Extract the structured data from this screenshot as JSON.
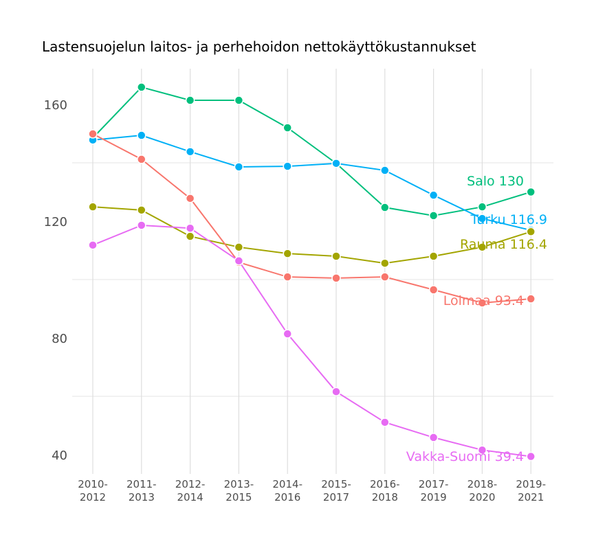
{
  "chart_data": {
    "type": "line",
    "title": "Lastensuojelun laitos- ja perhehoidon nettokäyttökustannukset",
    "xlabel": "",
    "ylabel": "",
    "categories": [
      "2010-\n2012",
      "2011-\n2013",
      "2012-\n2014",
      "2013-\n2015",
      "2014-\n2016",
      "2015-\n2017",
      "2016-\n2018",
      "2017-\n2019",
      "2018-\n2020",
      "2019-\n2021"
    ],
    "yticks": [
      40,
      80,
      120,
      160
    ],
    "ylim": [
      33,
      178
    ],
    "grid": true,
    "series": [
      {
        "name": "Salo",
        "end_label": "Salo 130",
        "color": "#00BF7D",
        "values": [
          148.5,
          165.9,
          161.4,
          161.4,
          152,
          139.8,
          124.7,
          121.9,
          124.9,
          130
        ]
      },
      {
        "name": "Turku",
        "end_label": "Turku 116.9",
        "color": "#00B0F6",
        "values": [
          147.8,
          149.4,
          143.8,
          138.6,
          138.8,
          139.8,
          137.4,
          128.9,
          120.9,
          116.9
        ]
      },
      {
        "name": "Rauma",
        "end_label": "Rauma 116.4",
        "color": "#A3A500",
        "values": [
          124.9,
          123.8,
          114.8,
          111.1,
          108.9,
          108,
          105.6,
          108,
          111.1,
          116.4
        ]
      },
      {
        "name": "Loimaa",
        "end_label": "Loimaa 93.4",
        "color": "#F8766D",
        "values": [
          149.9,
          141.2,
          127.8,
          105.9,
          100.9,
          100.5,
          100.9,
          96.5,
          92,
          93.4
        ]
      },
      {
        "name": "Vakka-Suomi",
        "end_label": "Vakka-Suomi 39.4",
        "color": "#E76BF3",
        "values": [
          111.8,
          118.6,
          117.6,
          106.4,
          81.4,
          61.6,
          51.1,
          45.9,
          41.6,
          39.4
        ]
      }
    ]
  }
}
